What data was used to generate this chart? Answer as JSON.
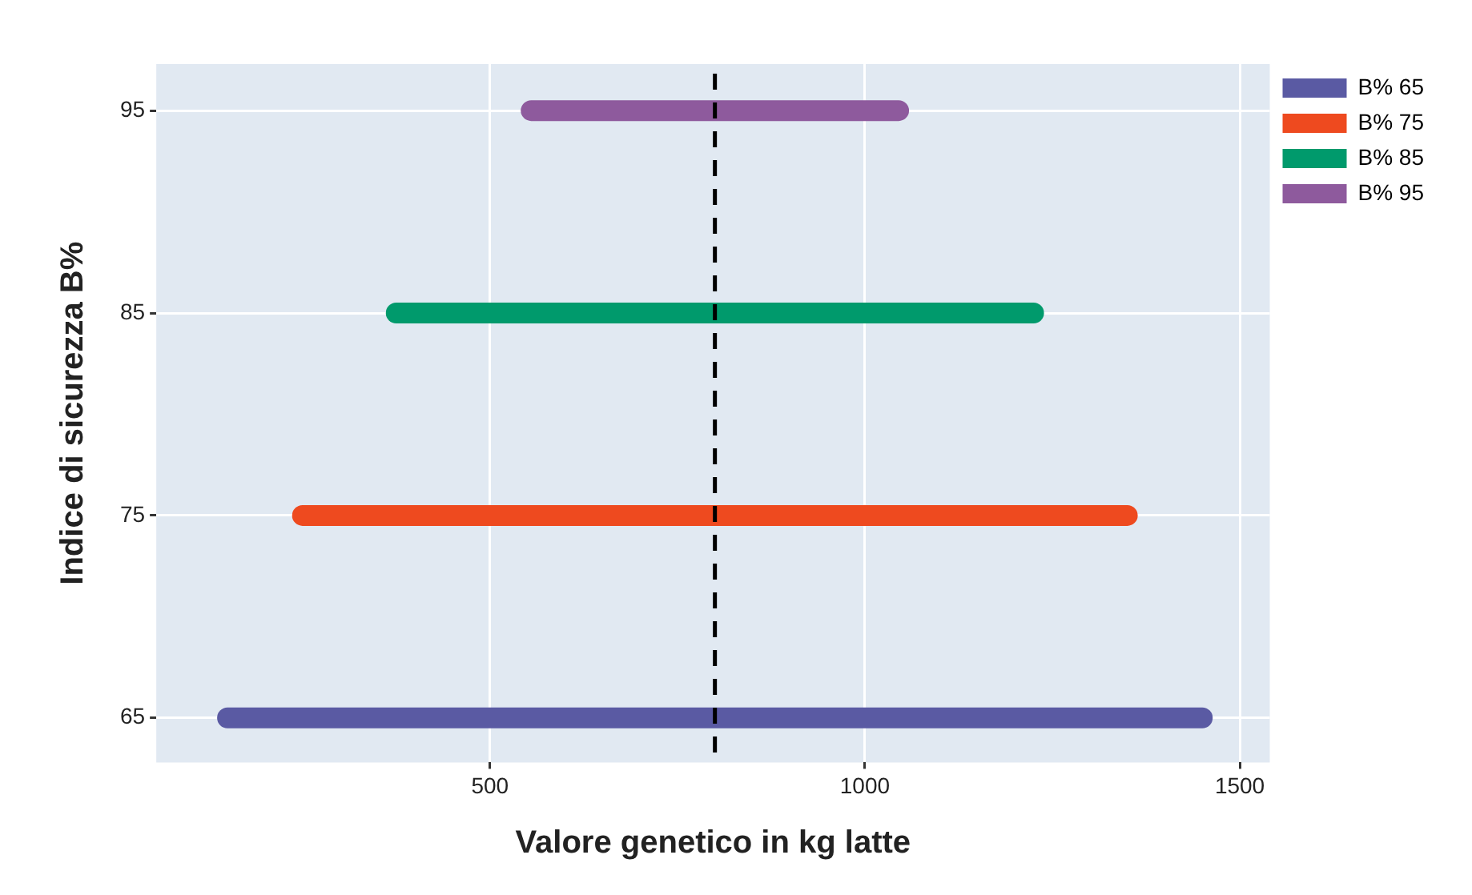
{
  "chart_data": {
    "type": "line",
    "xlabel": "Valore genetico in kg latte",
    "ylabel": "Indice di sicurezza B%",
    "series": [
      {
        "name": "B% 65",
        "color": "#5a5aa3",
        "x": [
          150,
          1450
        ],
        "values": [
          65,
          65
        ]
      },
      {
        "name": "B% 75",
        "color": "#ee4a1f",
        "x": [
          250,
          1350
        ],
        "values": [
          75,
          75
        ]
      },
      {
        "name": "B% 85",
        "color": "#009a6c",
        "x": [
          375,
          1225
        ],
        "values": [
          85,
          85
        ]
      },
      {
        "name": "B% 95",
        "color": "#8e5a9d",
        "x": [
          555,
          1045
        ],
        "values": [
          95,
          95
        ]
      }
    ],
    "xlim": [
      55,
      1540
    ],
    "xticks": [
      500,
      1000,
      1500
    ],
    "ylim": [
      62.8,
      97.3
    ],
    "yticks": [
      65,
      75,
      85,
      95
    ],
    "ref_lines": [
      {
        "axis": "x",
        "value": 800,
        "color": "#000000",
        "line_style": "dashed"
      }
    ],
    "grid": true,
    "legend": "top right",
    "marker": "none",
    "line_style": "solid"
  }
}
